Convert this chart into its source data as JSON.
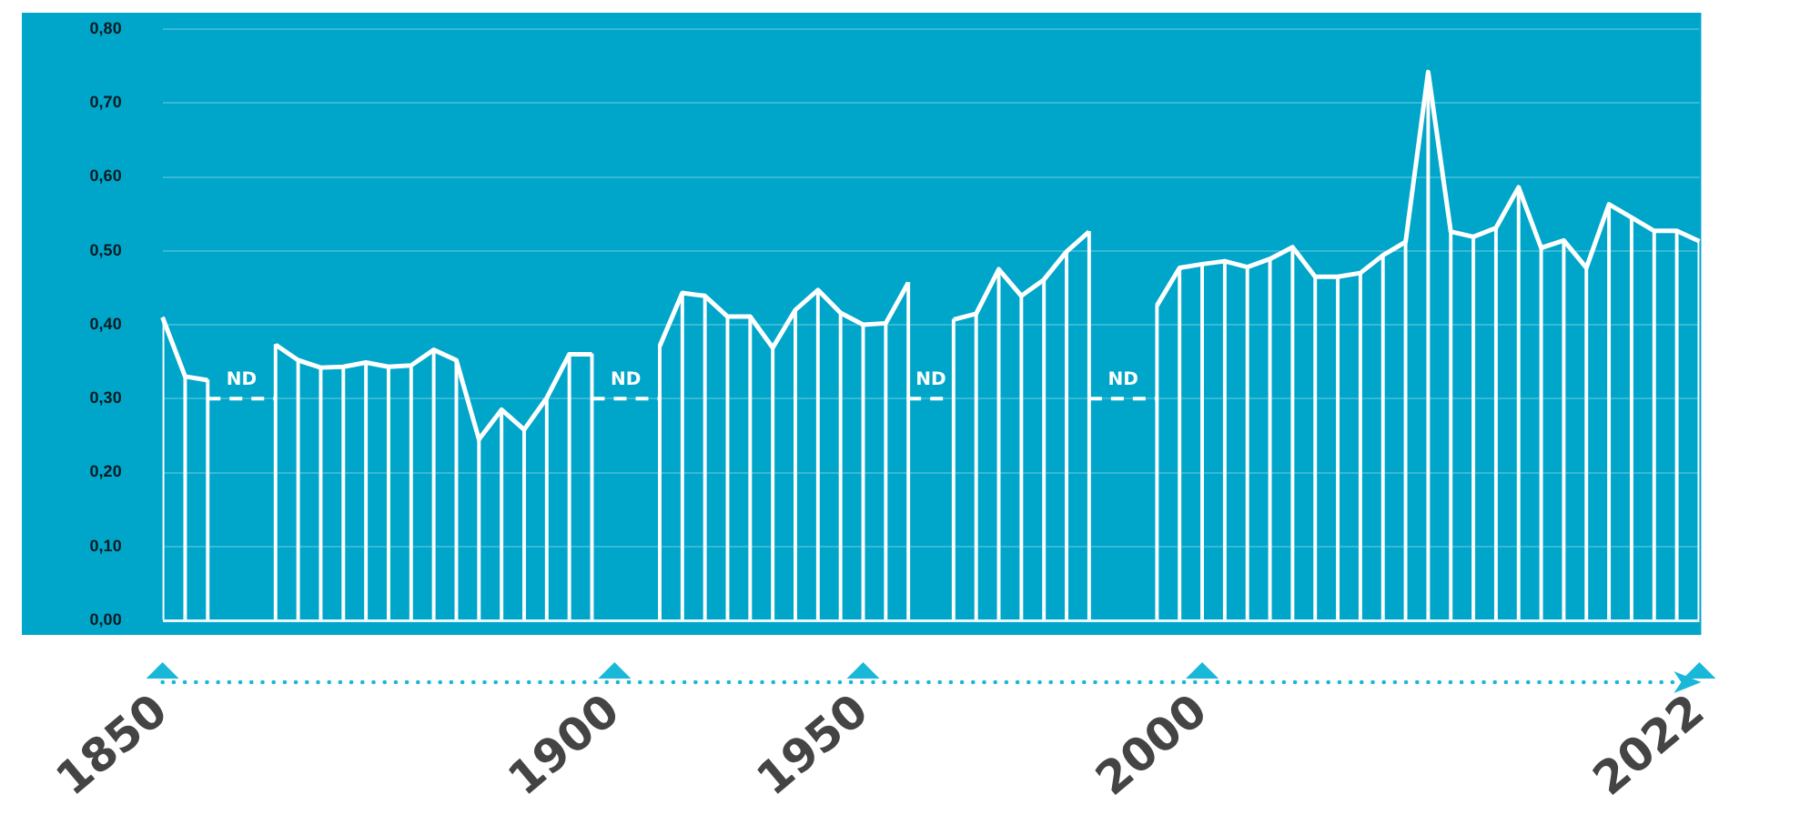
{
  "chart_data": {
    "type": "line",
    "categories": [
      "1850",
      null,
      null,
      null,
      null,
      null,
      null,
      null,
      null,
      null,
      null,
      null,
      null,
      null,
      null,
      null,
      null,
      null,
      null,
      null,
      "1900",
      null,
      null,
      null,
      null,
      null,
      null,
      null,
      null,
      null,
      null,
      "1950",
      null,
      null,
      null,
      null,
      null,
      null,
      null,
      null,
      null,
      null,
      null,
      null,
      null,
      null,
      "2000",
      null,
      null,
      null,
      null,
      null,
      null,
      null,
      null,
      null,
      null,
      null,
      null,
      null,
      null,
      null,
      null,
      null,
      null,
      null,
      null,
      null,
      "2022"
    ],
    "series": [
      {
        "color": "#ffffff",
        "values": [
          0.41,
          0.33,
          0.325,
          null,
          null,
          0.373,
          0.352,
          0.342,
          0.343,
          0.349,
          0.343,
          0.345,
          0.366,
          0.352,
          0.245,
          0.285,
          0.258,
          0.301,
          0.36,
          0.36,
          null,
          null,
          0.371,
          0.443,
          0.439,
          0.411,
          0.411,
          0.369,
          0.42,
          0.447,
          0.416,
          0.4,
          0.402,
          0.457,
          null,
          0.407,
          0.415,
          0.475,
          0.439,
          0.461,
          0.499,
          0.526,
          null,
          null,
          0.426,
          0.477,
          0.482,
          0.486,
          0.478,
          0.489,
          0.505,
          0.465,
          0.465,
          0.47,
          0.494,
          0.512,
          0.742,
          0.526,
          0.519,
          0.531,
          0.586,
          0.504,
          0.514,
          0.477,
          0.563,
          0.545,
          0.527,
          0.527,
          0.513
        ]
      },
      {
        "type": "bar",
        "color": "#ffffff",
        "values": [
          0.41,
          0.33,
          0.325,
          null,
          null,
          0.373,
          0.352,
          0.342,
          0.343,
          0.349,
          0.343,
          0.345,
          0.366,
          0.352,
          0.245,
          0.285,
          0.258,
          0.301,
          0.36,
          0.36,
          null,
          null,
          0.371,
          0.443,
          0.439,
          0.411,
          0.411,
          0.369,
          0.42,
          0.447,
          0.416,
          0.4,
          0.402,
          0.457,
          null,
          0.407,
          0.415,
          0.475,
          0.439,
          0.461,
          0.499,
          0.526,
          null,
          null,
          0.426,
          0.477,
          0.482,
          0.486,
          0.478,
          0.489,
          0.505,
          0.465,
          0.465,
          0.47,
          0.494,
          0.512,
          0.742,
          0.526,
          0.519,
          0.531,
          0.586,
          0.504,
          0.514,
          0.477,
          0.563,
          0.545,
          0.527,
          0.527,
          0.513
        ]
      },
      {
        "name": "ND",
        "color": "#ffffff",
        "line_style": "dashed",
        "values": [
          null,
          null,
          0.3,
          0.3,
          0.3,
          0.3,
          null,
          null,
          null,
          null,
          null,
          null,
          null,
          null,
          null,
          null,
          null,
          null,
          null,
          0.3,
          0.3,
          0.3,
          0.3,
          null,
          null,
          null,
          null,
          null,
          null,
          null,
          null,
          null,
          null,
          0.3,
          0.3,
          0.3,
          null,
          null,
          null,
          null,
          null,
          0.3,
          0.3,
          0.3,
          0.3,
          null,
          null,
          null,
          null,
          null,
          null,
          null,
          null,
          null,
          null,
          null,
          null,
          null,
          null,
          null,
          null,
          null,
          null,
          null,
          null,
          null,
          null,
          null,
          null
        ]
      }
    ],
    "ylim": [
      0,
      0.8
    ],
    "yticks": [
      {
        "value": 0,
        "label": "0,00"
      },
      {
        "value": 0.1,
        "label": "0,10"
      },
      {
        "value": 0.2,
        "label": "0,20"
      },
      {
        "value": 0.3,
        "label": "0,30"
      },
      {
        "value": 0.4,
        "label": "0,40"
      },
      {
        "value": 0.5,
        "label": "0,50"
      },
      {
        "value": 0.6,
        "label": "0,60"
      },
      {
        "value": 0.7,
        "label": "0,70"
      },
      {
        "value": 0.8,
        "label": "0,80"
      }
    ],
    "grid": "y",
    "legend": false,
    "marker": "none",
    "line_style": "solid"
  }
}
